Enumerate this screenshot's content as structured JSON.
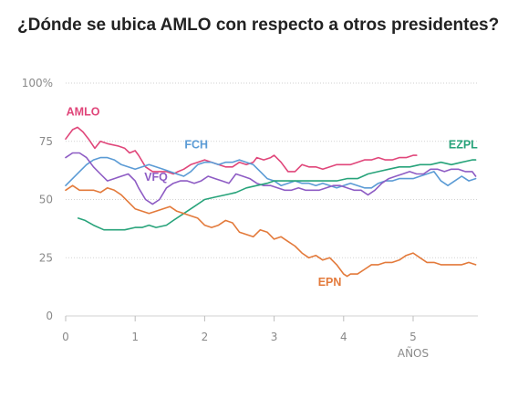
{
  "title": "¿Dónde se ubica AMLO con respecto a otros presidentes?",
  "chart_data": {
    "type": "line",
    "title": "¿Dónde se ubica AMLO con respecto a otros presidentes?",
    "xlabel": "AÑOS",
    "ylabel": "",
    "xlim": [
      0,
      5.92
    ],
    "ylim": [
      0,
      100
    ],
    "x_ticks": [
      "0",
      "1",
      "2",
      "3",
      "4",
      "5"
    ],
    "y_ticks": [
      "0",
      "25",
      "50",
      "75",
      "100%"
    ],
    "grid": true,
    "series": [
      {
        "name": "AMLO",
        "color": "#e0467a",
        "x": [
          0.0,
          0.1,
          0.17,
          0.25,
          0.33,
          0.42,
          0.5,
          0.6,
          0.75,
          0.85,
          0.92,
          1.0,
          1.05,
          1.15,
          1.25,
          1.35,
          1.45,
          1.55,
          1.62,
          1.7,
          1.8,
          1.9,
          2.0,
          2.1,
          2.2,
          2.3,
          2.4,
          2.5,
          2.6,
          2.7,
          2.75,
          2.85,
          2.95,
          3.0,
          3.1,
          3.2,
          3.3,
          3.4,
          3.5,
          3.6,
          3.7,
          3.8,
          3.9,
          4.0,
          4.1,
          4.2,
          4.3,
          4.4,
          4.5,
          4.6,
          4.7,
          4.8,
          4.9,
          5.0,
          5.05
        ],
        "values": [
          76,
          80,
          81,
          79,
          76,
          72,
          75,
          74,
          73,
          72,
          70,
          71,
          69,
          64,
          62,
          62,
          62,
          61,
          62,
          63,
          65,
          66,
          67,
          66,
          65,
          64,
          64,
          66,
          65,
          66,
          68,
          67,
          68,
          69,
          66,
          62,
          62,
          65,
          64,
          64,
          63,
          64,
          65,
          65,
          65,
          66,
          67,
          67,
          68,
          67,
          67,
          68,
          68,
          69,
          69
        ]
      },
      {
        "name": "FCH",
        "color": "#5b9bd5",
        "x": [
          0.0,
          0.1,
          0.2,
          0.3,
          0.4,
          0.5,
          0.6,
          0.7,
          0.8,
          0.9,
          1.0,
          1.1,
          1.2,
          1.3,
          1.4,
          1.5,
          1.6,
          1.7,
          1.8,
          1.9,
          2.0,
          2.1,
          2.2,
          2.3,
          2.4,
          2.5,
          2.6,
          2.7,
          2.8,
          2.9,
          3.0,
          3.1,
          3.2,
          3.3,
          3.4,
          3.5,
          3.6,
          3.7,
          3.8,
          3.9,
          4.0,
          4.1,
          4.2,
          4.3,
          4.4,
          4.5,
          4.6,
          4.7,
          4.8,
          4.9,
          5.0,
          5.1,
          5.2,
          5.3,
          5.4,
          5.5,
          5.6,
          5.7,
          5.8,
          5.9
        ],
        "values": [
          56,
          59,
          62,
          65,
          67,
          68,
          68,
          67,
          65,
          64,
          63,
          64,
          65,
          64,
          63,
          62,
          61,
          60,
          62,
          65,
          66,
          66,
          65,
          66,
          66,
          67,
          66,
          65,
          62,
          59,
          58,
          56,
          57,
          58,
          57,
          57,
          56,
          57,
          56,
          55,
          56,
          57,
          56,
          55,
          55,
          57,
          58,
          58,
          59,
          59,
          59,
          60,
          61,
          62,
          58,
          56,
          58,
          60,
          58,
          59
        ]
      },
      {
        "name": "VFQ",
        "color": "#8e5cc4",
        "x": [
          0.0,
          0.1,
          0.2,
          0.3,
          0.4,
          0.5,
          0.6,
          0.7,
          0.8,
          0.9,
          1.0,
          1.05,
          1.15,
          1.25,
          1.35,
          1.45,
          1.55,
          1.65,
          1.75,
          1.85,
          1.95,
          2.05,
          2.15,
          2.25,
          2.35,
          2.45,
          2.55,
          2.65,
          2.75,
          2.85,
          2.95,
          3.05,
          3.15,
          3.25,
          3.35,
          3.45,
          3.55,
          3.65,
          3.75,
          3.85,
          3.95,
          4.05,
          4.15,
          4.25,
          4.35,
          4.45,
          4.55,
          4.65,
          4.75,
          4.85,
          4.95,
          5.05,
          5.15,
          5.25,
          5.35,
          5.45,
          5.55,
          5.65,
          5.75,
          5.85,
          5.9
        ],
        "values": [
          68,
          70,
          70,
          68,
          64,
          61,
          58,
          59,
          60,
          61,
          58,
          55,
          50,
          48,
          50,
          55,
          57,
          58,
          58,
          57,
          58,
          60,
          59,
          58,
          57,
          61,
          60,
          59,
          57,
          56,
          56,
          55,
          54,
          54,
          55,
          54,
          54,
          54,
          55,
          56,
          56,
          55,
          54,
          54,
          52,
          54,
          57,
          59,
          60,
          61,
          62,
          61,
          61,
          63,
          63,
          62,
          63,
          63,
          62,
          62,
          60
        ]
      },
      {
        "name": "EZPL",
        "color": "#27a37a",
        "x": [
          0.18,
          0.28,
          0.4,
          0.55,
          0.7,
          0.85,
          1.0,
          1.1,
          1.2,
          1.3,
          1.45,
          1.55,
          1.7,
          1.85,
          2.0,
          2.15,
          2.3,
          2.45,
          2.6,
          2.75,
          2.9,
          3.0,
          3.15,
          3.3,
          3.5,
          3.7,
          3.9,
          4.05,
          4.2,
          4.35,
          4.5,
          4.65,
          4.8,
          4.95,
          5.1,
          5.25,
          5.4,
          5.55,
          5.7,
          5.85,
          5.9
        ],
        "values": [
          42,
          41,
          39,
          37,
          37,
          37,
          38,
          38,
          39,
          38,
          39,
          41,
          44,
          47,
          50,
          51,
          52,
          53,
          55,
          56,
          57,
          58,
          58,
          58,
          58,
          58,
          58,
          59,
          59,
          61,
          62,
          63,
          64,
          64,
          65,
          65,
          66,
          65,
          66,
          67,
          67
        ]
      },
      {
        "name": "EPN",
        "color": "#e37a3b",
        "x": [
          0.0,
          0.1,
          0.2,
          0.3,
          0.4,
          0.5,
          0.6,
          0.7,
          0.8,
          0.9,
          1.0,
          1.1,
          1.2,
          1.3,
          1.4,
          1.5,
          1.6,
          1.7,
          1.8,
          1.9,
          2.0,
          2.1,
          2.2,
          2.3,
          2.4,
          2.5,
          2.6,
          2.7,
          2.8,
          2.9,
          3.0,
          3.1,
          3.2,
          3.3,
          3.4,
          3.5,
          3.6,
          3.7,
          3.8,
          3.9,
          4.0,
          4.05,
          4.1,
          4.2,
          4.3,
          4.4,
          4.5,
          4.6,
          4.7,
          4.8,
          4.9,
          5.0,
          5.1,
          5.2,
          5.3,
          5.4,
          5.5,
          5.6,
          5.7,
          5.8,
          5.9
        ],
        "values": [
          54,
          56,
          54,
          54,
          54,
          53,
          55,
          54,
          52,
          49,
          46,
          45,
          44,
          45,
          46,
          47,
          45,
          44,
          43,
          42,
          39,
          38,
          39,
          41,
          40,
          36,
          35,
          34,
          37,
          36,
          33,
          34,
          32,
          30,
          27,
          25,
          26,
          24,
          25,
          22,
          18,
          17,
          18,
          18,
          20,
          22,
          22,
          23,
          23,
          24,
          26,
          27,
          25,
          23,
          23,
          22,
          22,
          22,
          22,
          23,
          22
        ]
      }
    ],
    "series_labels": [
      {
        "text": "AMLO",
        "x": 0.25,
        "y": 86
      },
      {
        "text": "FCH",
        "x": 1.88,
        "y": 72
      },
      {
        "text": "VFQ",
        "x": 1.3,
        "y": 58
      },
      {
        "text": "EZPL",
        "x": 5.72,
        "y": 72
      },
      {
        "text": "EPN",
        "x": 3.8,
        "y": 13
      }
    ]
  }
}
